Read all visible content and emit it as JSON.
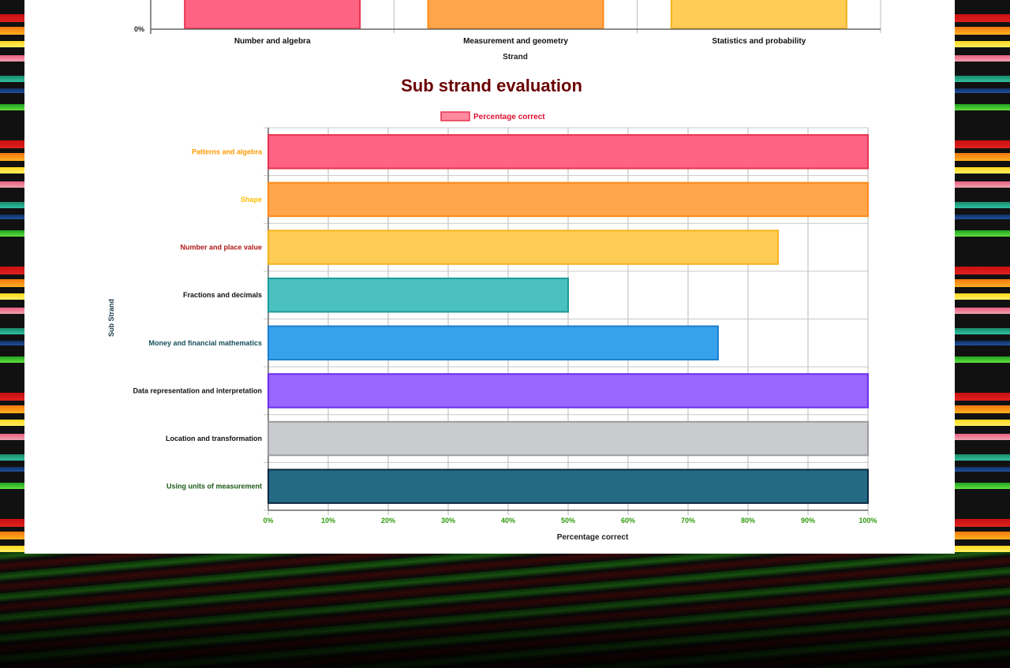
{
  "top_chart": {
    "y_tick_zero": "0%",
    "categories": [
      "Number and algebra",
      "Measurement and geometry",
      "Statistics and probability"
    ],
    "xlabel": "Strand",
    "bar_colors": [
      "#ff6384",
      "#ffa64d",
      "#ffcd56"
    ],
    "bar_borders": [
      "#e8334f",
      "#ff8a1a",
      "#f5b31b"
    ]
  },
  "chart_data": {
    "type": "bar",
    "orientation": "horizontal",
    "title": "Sub strand evaluation",
    "legend": {
      "label": "Percentage correct",
      "position": "top-center"
    },
    "xlabel": "Percentage correct",
    "ylabel": "Sub Strand",
    "xlim": [
      0,
      100
    ],
    "x_ticks": [
      "0%",
      "10%",
      "20%",
      "30%",
      "40%",
      "50%",
      "60%",
      "70%",
      "80%",
      "90%",
      "100%"
    ],
    "grid": true,
    "categories": [
      "Patterns and algebra",
      "Shape",
      "Number and place value",
      "Fractions and decimals",
      "Money and financial mathematics",
      "Data representation and interpretation",
      "Location and transformation",
      "Using units of measurement"
    ],
    "series": [
      {
        "name": "Percentage correct",
        "values": [
          100,
          100,
          85,
          50,
          75,
          100,
          100,
          100
        ]
      }
    ],
    "bar_colors": [
      "#ff6384",
      "#ffa64d",
      "#ffcd56",
      "#4bc0c0",
      "#36a2eb",
      "#9966ff",
      "#c9cbcf",
      "#256a85"
    ],
    "bar_borders": [
      "#e8334f",
      "#ff8a1a",
      "#f5b31b",
      "#1e9a9a",
      "#1f7fd0",
      "#6a2ff0",
      "#9a9ca0",
      "#0e2a44"
    ],
    "label_colors": [
      "#ff9a00",
      "#ffbe00",
      "#b01818",
      "#111111",
      "#16505a",
      "#111111",
      "#111111",
      "#1a5a14"
    ],
    "tick_color": "#2e9a0a"
  }
}
